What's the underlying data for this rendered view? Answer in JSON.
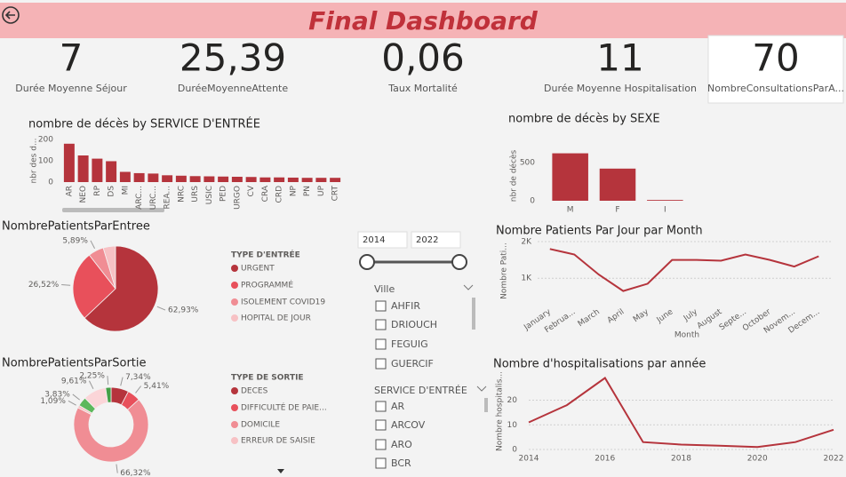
{
  "header": {
    "title": "Final Dashboard"
  },
  "kpis": [
    {
      "value": "7",
      "label": "Durée Moyenne Séjour"
    },
    {
      "value": "25,39",
      "label": "DuréeMoyenneAttente"
    },
    {
      "value": "0,06",
      "label": "Taux Mortalité"
    },
    {
      "value": "11",
      "label": "Durée Moyenne Hospitalisation"
    },
    {
      "value": "70",
      "label": "NombreConsultationsParA..."
    }
  ],
  "slicers": {
    "year": {
      "from": "2014",
      "to": "2022"
    },
    "ville": {
      "title": "Ville",
      "items": [
        "AHFIR",
        "DRIOUCH",
        "FEGUIG",
        "GUERCIF"
      ]
    },
    "service": {
      "title": "SERVICE D'ENTRÉE",
      "items": [
        "AR",
        "ARCOV",
        "ARO",
        "BCR"
      ]
    }
  },
  "chart_data": [
    {
      "type": "bar",
      "title": "nombre de décès by SERVICE D'ENTRÉE",
      "y_label": "nbr des d...",
      "categories": [
        "AR",
        "NEO",
        "RP",
        "DS",
        "MI",
        "ARC...",
        "URC...",
        "REA...",
        "NRC",
        "URS",
        "USIC",
        "PED",
        "URGO",
        "CV",
        "CRA",
        "CRD",
        "NP",
        "PN",
        "UP",
        "CRT"
      ],
      "values": [
        180,
        125,
        110,
        98,
        48,
        42,
        40,
        32,
        30,
        28,
        27,
        26,
        25,
        24,
        22,
        22,
        21,
        20,
        20,
        20
      ],
      "color": "#b5343c",
      "ylim": [
        0,
        200
      ],
      "yticks": [
        0,
        100,
        200
      ],
      "grid": false
    },
    {
      "type": "bar",
      "title": "nombre de décès by SEXE",
      "y_label": "nbr de décès",
      "categories": [
        "M",
        "F",
        "I"
      ],
      "values": [
        620,
        420,
        10
      ],
      "color": "#b5343c",
      "ylim": [
        0,
        650
      ],
      "yticks": [
        0,
        500
      ],
      "grid": false
    },
    {
      "type": "pie",
      "title": "NombrePatientsParEntree",
      "legend_title": "TYPE D'ENTRÉE",
      "categories": [
        "URGENT",
        "PROGRAMMÉ",
        "ISOLEMENT COVID19",
        "HOPITAL DE JOUR"
      ],
      "values": [
        62.93,
        26.52,
        5.89,
        4.66
      ],
      "value_labels": [
        "62,93%",
        "26,52%",
        "5,89%",
        null
      ],
      "colors": [
        "#b5343c",
        "#e8505b",
        "#f08d94",
        "#f7c1c4"
      ]
    },
    {
      "type": "donut",
      "title": "NombrePatientsParSortie",
      "legend_title": "TYPE DE SORTIE",
      "categories": [
        "DECES",
        "DIFFICULTÉ DE PAIE...",
        "DOMICILE",
        "ERREUR DE SAISIE",
        null,
        null,
        null
      ],
      "values": [
        7.34,
        5.41,
        66.32,
        1.09,
        3.83,
        9.61,
        2.25
      ],
      "value_labels": [
        "7,34%",
        "5,41%",
        "66,32%",
        "1,09%",
        "3,83%",
        "9,61%",
        "2,25%"
      ],
      "colors": [
        "#b5343c",
        "#e8505b",
        "#f08d94",
        "#f7c1c4",
        "#5cb85c",
        "#fbd5d8",
        "#43a047"
      ]
    },
    {
      "type": "line",
      "title": "Nombre Patients Par Jour par Month",
      "x_label": "Month",
      "y_label": "Nombre Pati...",
      "categories": [
        "January",
        "Februa...",
        "March",
        "April",
        "May",
        "June",
        "July",
        "August",
        "Septe...",
        "October",
        "Novem...",
        "Decem..."
      ],
      "values": [
        1800,
        1650,
        1100,
        650,
        850,
        1500,
        1500,
        1480,
        1650,
        1500,
        1320,
        1600
      ],
      "color": "#b5343c",
      "ylim": [
        350,
        2050
      ],
      "yticks": [
        {
          "value": 1000,
          "label": "1K"
        },
        {
          "value": 2000,
          "label": "2K"
        }
      ],
      "grid": true
    },
    {
      "type": "line",
      "title": "Nombre d'hospitalisations par année",
      "y_label": "Nombre hospitalis...",
      "x": [
        2014,
        2015,
        2016,
        2017,
        2018,
        2019,
        2020,
        2021,
        2022
      ],
      "values": [
        11,
        18,
        29,
        3,
        2,
        1.5,
        1,
        3,
        8
      ],
      "color": "#b5343c",
      "xlim": [
        2014,
        2022
      ],
      "xticks": [
        2014,
        2016,
        2018,
        2020,
        2022
      ],
      "ylim": [
        0,
        31
      ],
      "yticks": [
        0,
        10,
        20
      ],
      "grid": true
    }
  ]
}
